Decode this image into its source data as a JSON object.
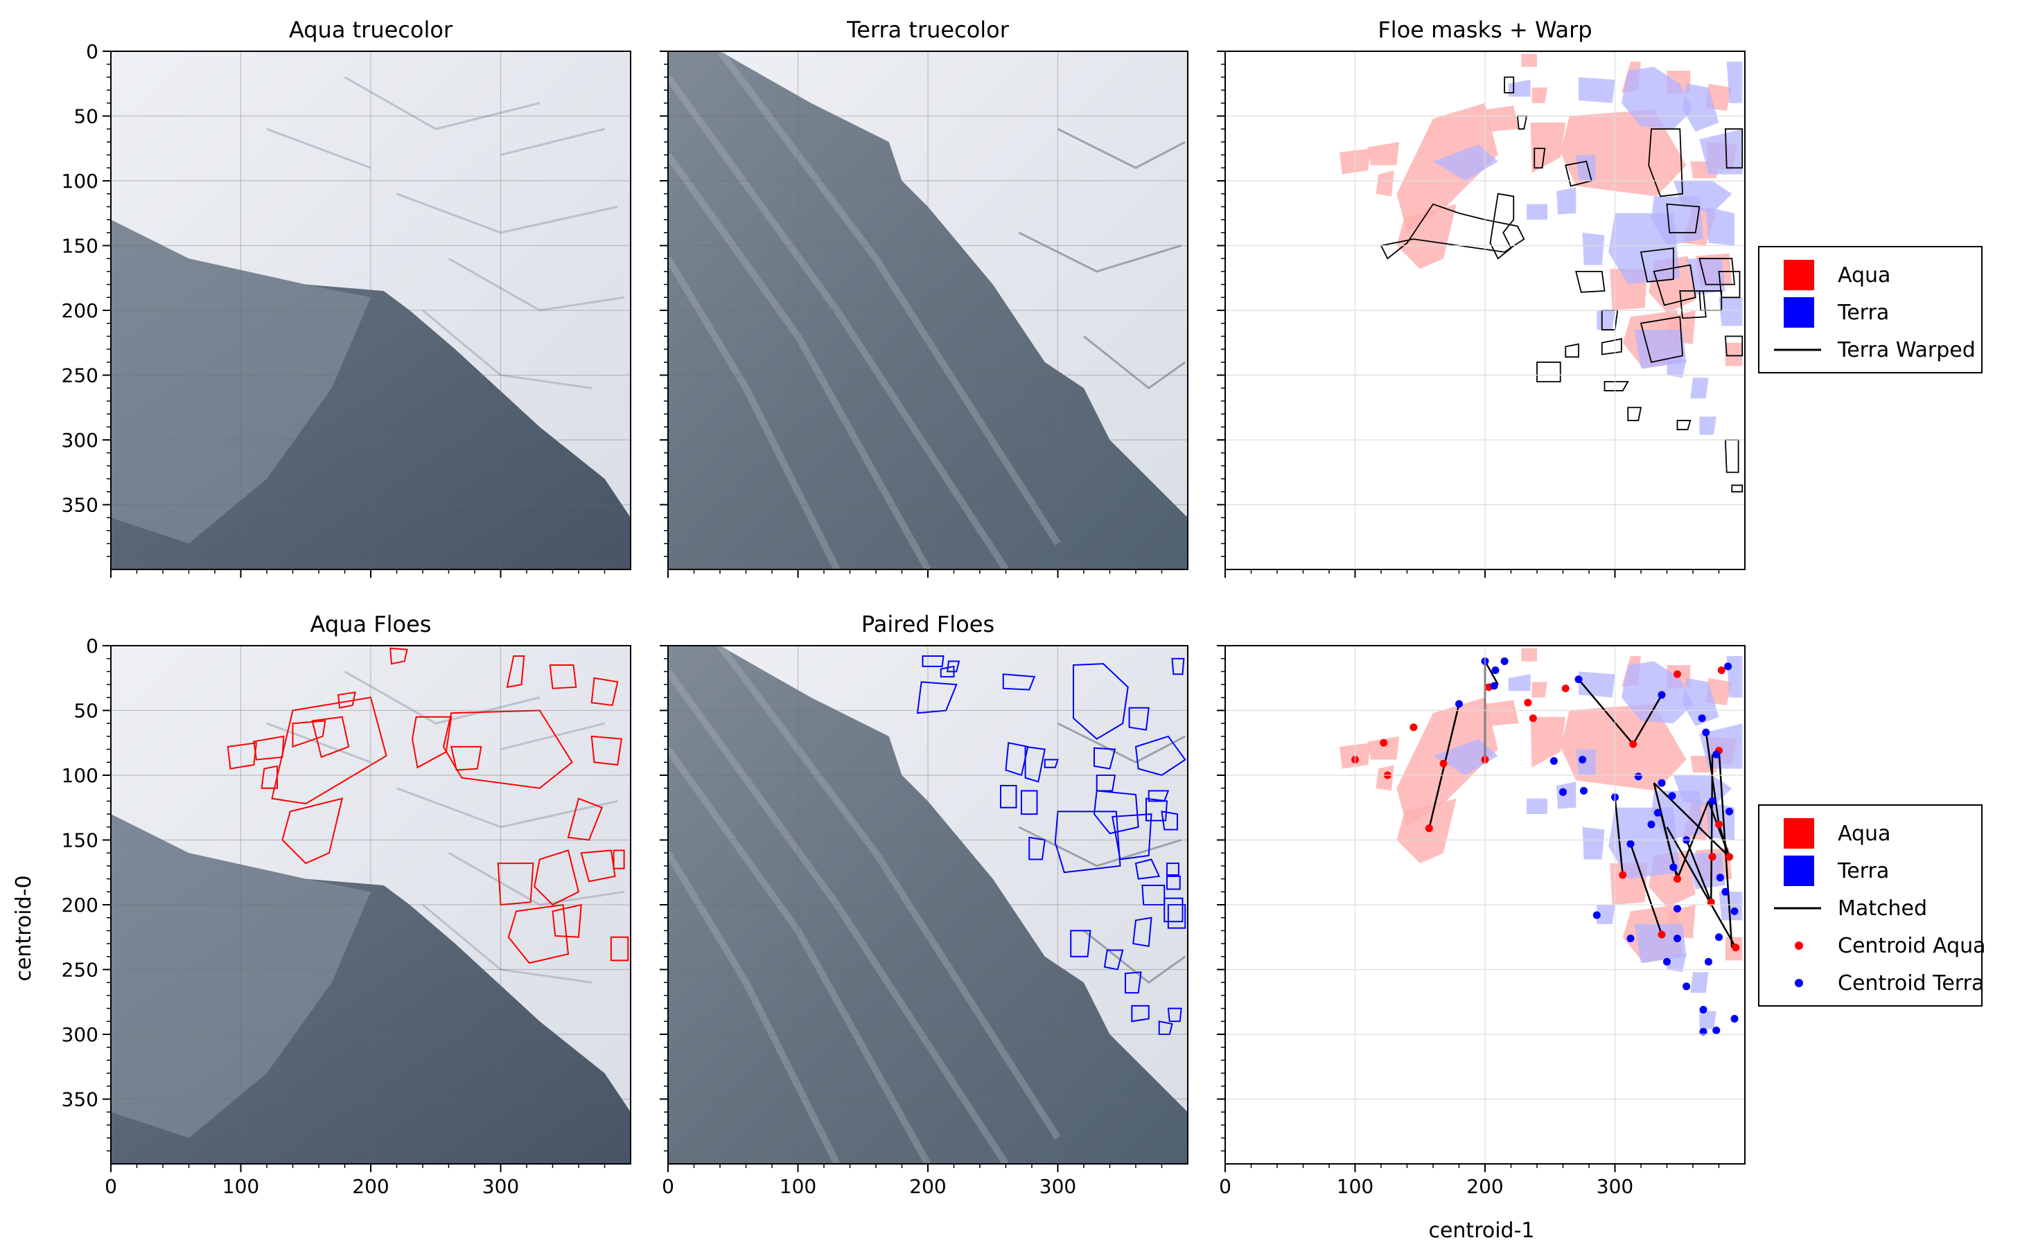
{
  "figure": {
    "ylabel": "centroid-0",
    "xlabel": "centroid-1"
  },
  "colors": {
    "aqua": "#ff0000",
    "terra": "#0000ff",
    "aqua_fill": "#ffb3b3",
    "terra_fill": "#b3b3ff",
    "warp": "#000000",
    "ice": "#e4e7ee",
    "water": "#4c5a6a"
  },
  "panels": [
    {
      "id": "aqua-truecolor",
      "title": "Aqua truecolor",
      "kind": "image"
    },
    {
      "id": "terra-truecolor",
      "title": "Terra truecolor",
      "kind": "image"
    },
    {
      "id": "floe-masks-warp",
      "title": "Floe masks + Warp",
      "kind": "masks"
    },
    {
      "id": "aqua-floes",
      "title": "Aqua Floes",
      "kind": "image-aqua-floes"
    },
    {
      "id": "paired-floes",
      "title": "Paired Floes",
      "kind": "image-terra-floes"
    },
    {
      "id": "matched-centroids",
      "title": "",
      "kind": "centroids"
    }
  ],
  "legends": {
    "top": [
      {
        "label": "Aqua",
        "type": "patch",
        "color": "#ff0000"
      },
      {
        "label": "Terra",
        "type": "patch",
        "color": "#0000ff"
      },
      {
        "label": "Terra Warped",
        "type": "line",
        "color": "#000000"
      }
    ],
    "bottom": [
      {
        "label": "Aqua",
        "type": "patch",
        "color": "#ff0000"
      },
      {
        "label": "Terra",
        "type": "patch",
        "color": "#0000ff"
      },
      {
        "label": "Matched",
        "type": "line",
        "color": "#000000"
      },
      {
        "label": "Centroid Aqua",
        "type": "dot",
        "color": "#ff0000"
      },
      {
        "label": "Centroid Terra",
        "type": "dot",
        "color": "#0000ff"
      }
    ]
  },
  "axes": {
    "xlim": [
      0,
      400
    ],
    "ylim": [
      400,
      0
    ],
    "xticks": [
      "0",
      "100",
      "200",
      "300"
    ],
    "yticks": [
      "0",
      "50",
      "100",
      "150",
      "200",
      "250",
      "300",
      "350"
    ],
    "grid": true
  },
  "chart_data": {
    "type": "scatter",
    "xlabel": "centroid-1",
    "ylabel": "centroid-0",
    "xlim": [
      0,
      400
    ],
    "ylim": [
      400,
      0
    ],
    "series": [
      {
        "name": "Centroid Aqua",
        "color": "#ff0000",
        "points": [
          [
            100,
            88
          ],
          [
            122,
            75
          ],
          [
            125,
            100
          ],
          [
            145,
            63
          ],
          [
            168,
            91
          ],
          [
            157,
            141
          ],
          [
            200,
            88
          ],
          [
            203,
            32
          ],
          [
            233,
            44
          ],
          [
            237,
            56
          ],
          [
            262,
            33
          ],
          [
            314,
            76
          ],
          [
            348,
            22
          ],
          [
            382,
            19
          ],
          [
            306,
            177
          ],
          [
            336,
            223
          ],
          [
            348,
            180
          ],
          [
            375,
            163
          ],
          [
            374,
            198
          ],
          [
            380,
            81
          ],
          [
            388,
            163
          ],
          [
            393,
            233
          ],
          [
            380,
            138
          ]
        ]
      },
      {
        "name": "Centroid Terra",
        "color": "#0000ff",
        "points": [
          [
            200,
            12
          ],
          [
            207,
            31
          ],
          [
            208,
            19
          ],
          [
            215,
            12
          ],
          [
            180,
            45
          ],
          [
            272,
            26
          ],
          [
            253,
            89
          ],
          [
            260,
            113
          ],
          [
            275,
            88
          ],
          [
            276,
            112
          ],
          [
            286,
            208
          ],
          [
            312,
            153
          ],
          [
            300,
            117
          ],
          [
            318,
            101
          ],
          [
            336,
            38
          ],
          [
            336,
            106
          ],
          [
            333,
            129
          ],
          [
            344,
            116
          ],
          [
            328,
            138
          ],
          [
            355,
            150
          ],
          [
            345,
            171
          ],
          [
            348,
            203
          ],
          [
            312,
            226
          ],
          [
            348,
            226
          ],
          [
            340,
            244
          ],
          [
            355,
            263
          ],
          [
            368,
            298
          ],
          [
            368,
            281
          ],
          [
            378,
            297
          ],
          [
            392,
            288
          ],
          [
            387,
            16
          ],
          [
            367,
            56
          ],
          [
            370,
            67
          ],
          [
            378,
            84
          ],
          [
            375,
            120
          ],
          [
            388,
            128
          ],
          [
            381,
            179
          ],
          [
            385,
            190
          ],
          [
            392,
            205
          ],
          [
            380,
            225
          ],
          [
            372,
            244
          ]
        ]
      },
      {
        "name": "Matched",
        "color": "#000000",
        "pairs": [
          [
            [
              200,
              12
            ],
            [
              200,
              88
            ]
          ],
          [
            [
              200,
              12
            ],
            [
              210,
              30
            ]
          ],
          [
            [
              180,
              45
            ],
            [
              157,
              141
            ]
          ],
          [
            [
              272,
              26
            ],
            [
              314,
              76
            ]
          ],
          [
            [
              314,
              76
            ],
            [
              336,
              38
            ]
          ],
          [
            [
              312,
              153
            ],
            [
              336,
              223
            ]
          ],
          [
            [
              300,
              117
            ],
            [
              306,
              177
            ]
          ],
          [
            [
              330,
              106
            ],
            [
              348,
              180
            ]
          ],
          [
            [
              330,
              106
            ],
            [
              388,
              163
            ]
          ],
          [
            [
              335,
              128
            ],
            [
              348,
              180
            ]
          ],
          [
            [
              345,
              171
            ],
            [
              350,
              180
            ]
          ],
          [
            [
              348,
              180
            ],
            [
              372,
              120
            ]
          ],
          [
            [
              372,
              120
            ],
            [
              388,
              163
            ]
          ],
          [
            [
              375,
              84
            ],
            [
              374,
              198
            ]
          ],
          [
            [
              380,
              80
            ],
            [
              390,
              233
            ]
          ],
          [
            [
              370,
              66
            ],
            [
              380,
              138
            ]
          ],
          [
            [
              340,
              140
            ],
            [
              393,
              233
            ]
          ],
          [
            [
              380,
              138
            ],
            [
              388,
              163
            ]
          ],
          [
            [
              355,
              150
            ],
            [
              374,
              198
            ]
          ]
        ]
      }
    ]
  }
}
